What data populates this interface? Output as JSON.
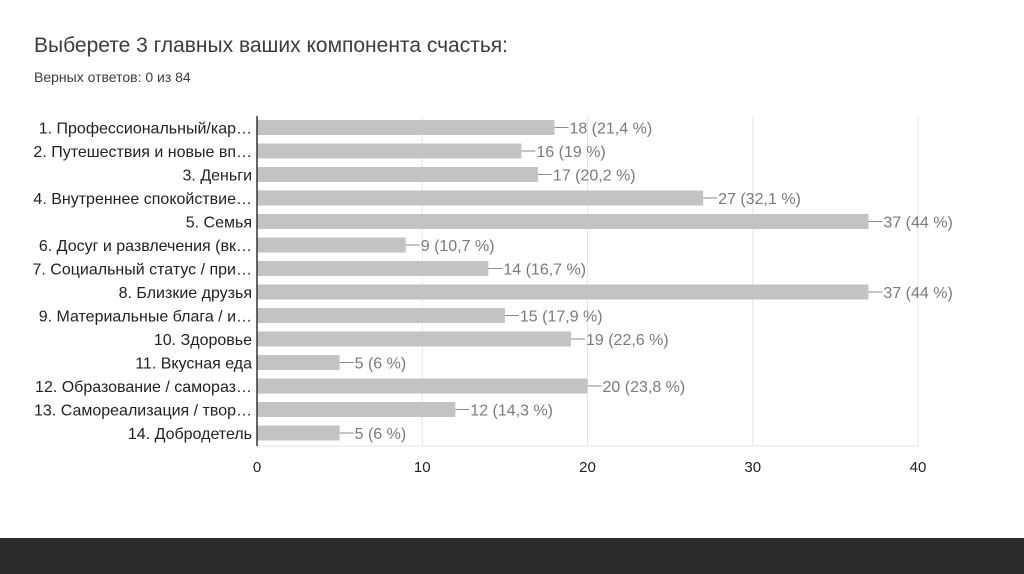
{
  "header": {
    "title": "Выберете 3 главных ваших компонента счастья:",
    "subtitle": "Верных ответов: 0 из 84"
  },
  "chart_data": {
    "type": "bar",
    "orientation": "horizontal",
    "categories": [
      "1. Профессиональный/кар…",
      "2. Путешествия и новые вп…",
      "3. Деньги",
      "4. Внутреннее спокойствие…",
      "5. Семья",
      "6. Досуг и развлечения (вк…",
      "7. Социальный статус / при…",
      "8. Близкие друзья",
      "9. Материальные блага / и…",
      "10. Здоровье",
      "11. Вкусная еда",
      "12. Образование / самораз…",
      "13. Самореализация / твор…",
      "14. Добродетель"
    ],
    "values": [
      18,
      16,
      17,
      27,
      37,
      9,
      14,
      37,
      15,
      19,
      5,
      20,
      12,
      5
    ],
    "data_labels": [
      "18 (21,4 %)",
      "16 (19 %)",
      "17 (20,2 %)",
      "27 (32,1 %)",
      "37 (44 %)",
      "9 (10,7 %)",
      "14 (16,7 %)",
      "37 (44 %)",
      "15 (17,9 %)",
      "19 (22,6 %)",
      "5 (6 %)",
      "20 (23,8 %)",
      "12 (14,3 %)",
      "5 (6 %)"
    ],
    "xlim": [
      0,
      40
    ],
    "xticks": [
      0,
      10,
      20,
      30,
      40
    ],
    "grid": true,
    "bar_color": "#c3c3c3",
    "grid_color": "#e6e6e6",
    "label_color": "#7a7a7a",
    "text_color": "#222222"
  }
}
